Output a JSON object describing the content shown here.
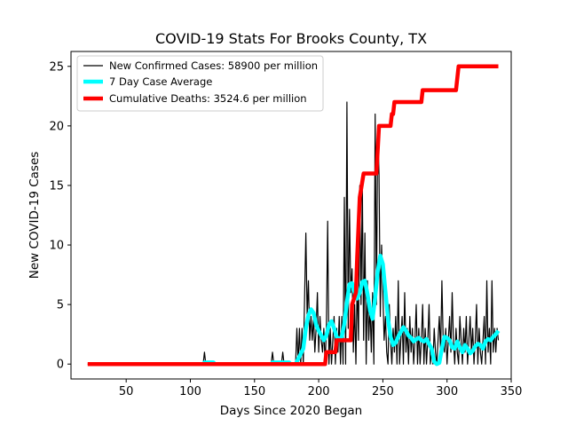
{
  "chart_data": {
    "type": "line",
    "title": "COVID-19 Stats For Brooks County, TX",
    "xlabel": "Days Since 2020 Began",
    "ylabel": "New COVID-19 Cases",
    "xlim": [
      7,
      350
    ],
    "ylim": [
      -1.25,
      26.25
    ],
    "x_ticks": [
      50,
      100,
      150,
      200,
      250,
      300,
      350
    ],
    "y_ticks": [
      0,
      5,
      10,
      15,
      20,
      25
    ],
    "legend_position": "top-left",
    "grid": false,
    "series": [
      {
        "name": "New Confirmed Cases: 58900 per million",
        "color": "#000000",
        "points": [
          [
            20,
            0
          ],
          [
            110,
            0
          ],
          [
            111,
            1
          ],
          [
            112,
            0
          ],
          [
            163,
            0
          ],
          [
            164,
            1
          ],
          [
            165,
            0
          ],
          [
            171,
            0
          ],
          [
            172,
            1
          ],
          [
            173,
            0
          ],
          [
            182,
            0
          ],
          [
            183,
            3
          ],
          [
            184,
            0
          ],
          [
            185,
            3
          ],
          [
            186,
            0
          ],
          [
            187,
            3
          ],
          [
            188,
            0
          ],
          [
            190,
            11
          ],
          [
            191,
            4
          ],
          [
            192,
            7
          ],
          [
            193,
            2
          ],
          [
            194,
            4
          ],
          [
            195,
            2
          ],
          [
            196,
            4
          ],
          [
            197,
            1
          ],
          [
            198,
            3
          ],
          [
            199,
            6
          ],
          [
            200,
            1
          ],
          [
            201,
            4
          ],
          [
            202,
            2
          ],
          [
            203,
            1
          ],
          [
            204,
            3
          ],
          [
            205,
            0
          ],
          [
            206,
            3
          ],
          [
            207,
            12
          ],
          [
            208,
            0
          ],
          [
            209,
            3
          ],
          [
            210,
            0
          ],
          [
            211,
            2
          ],
          [
            212,
            4
          ],
          [
            213,
            0
          ],
          [
            214,
            3
          ],
          [
            215,
            1
          ],
          [
            216,
            4
          ],
          [
            217,
            0
          ],
          [
            218,
            4
          ],
          [
            219,
            0
          ],
          [
            220,
            14
          ],
          [
            221,
            0
          ],
          [
            222,
            22
          ],
          [
            223,
            3
          ],
          [
            224,
            13
          ],
          [
            225,
            6
          ],
          [
            226,
            8
          ],
          [
            227,
            1
          ],
          [
            228,
            5
          ],
          [
            229,
            0
          ],
          [
            230,
            7
          ],
          [
            231,
            2
          ],
          [
            232,
            15
          ],
          [
            233,
            5
          ],
          [
            234,
            15
          ],
          [
            235,
            2
          ],
          [
            236,
            11
          ],
          [
            237,
            0
          ],
          [
            238,
            7
          ],
          [
            239,
            2
          ],
          [
            240,
            5
          ],
          [
            241,
            1
          ],
          [
            242,
            6
          ],
          [
            243,
            0
          ],
          [
            244,
            21
          ],
          [
            245,
            5
          ],
          [
            246,
            20
          ],
          [
            247,
            16
          ],
          [
            248,
            4
          ],
          [
            249,
            10
          ],
          [
            250,
            6
          ],
          [
            251,
            2
          ],
          [
            252,
            4
          ],
          [
            253,
            1
          ],
          [
            254,
            0
          ],
          [
            255,
            5
          ],
          [
            256,
            2
          ],
          [
            257,
            0
          ],
          [
            258,
            3
          ],
          [
            259,
            1
          ],
          [
            260,
            4
          ],
          [
            261,
            0
          ],
          [
            262,
            7
          ],
          [
            263,
            0
          ],
          [
            264,
            2
          ],
          [
            265,
            4
          ],
          [
            266,
            0
          ],
          [
            267,
            6
          ],
          [
            268,
            1
          ],
          [
            269,
            3
          ],
          [
            270,
            0
          ],
          [
            271,
            4
          ],
          [
            272,
            1
          ],
          [
            273,
            3
          ],
          [
            274,
            0
          ],
          [
            275,
            2
          ],
          [
            276,
            5
          ],
          [
            277,
            0
          ],
          [
            278,
            3
          ],
          [
            279,
            0
          ],
          [
            280,
            2
          ],
          [
            281,
            5
          ],
          [
            282,
            0
          ],
          [
            283,
            3
          ],
          [
            284,
            0
          ],
          [
            285,
            2
          ],
          [
            286,
            5
          ],
          [
            287,
            0
          ],
          [
            288,
            1
          ],
          [
            289,
            0
          ],
          [
            290,
            3
          ],
          [
            291,
            1
          ],
          [
            292,
            0
          ],
          [
            293,
            2
          ],
          [
            294,
            4
          ],
          [
            295,
            1
          ],
          [
            296,
            7
          ],
          [
            297,
            2
          ],
          [
            298,
            1
          ],
          [
            299,
            3
          ],
          [
            300,
            0
          ],
          [
            301,
            2
          ],
          [
            302,
            4
          ],
          [
            303,
            1
          ],
          [
            304,
            6
          ],
          [
            305,
            2
          ],
          [
            306,
            0
          ],
          [
            307,
            3
          ],
          [
            308,
            1
          ],
          [
            309,
            0
          ],
          [
            310,
            4
          ],
          [
            311,
            2
          ],
          [
            312,
            0
          ],
          [
            313,
            3
          ],
          [
            314,
            1
          ],
          [
            315,
            4
          ],
          [
            316,
            0
          ],
          [
            317,
            2
          ],
          [
            318,
            4
          ],
          [
            319,
            1
          ],
          [
            320,
            3
          ],
          [
            321,
            0
          ],
          [
            322,
            2
          ],
          [
            323,
            5
          ],
          [
            324,
            0
          ],
          [
            325,
            3
          ],
          [
            326,
            1
          ],
          [
            327,
            0
          ],
          [
            328,
            2
          ],
          [
            329,
            4
          ],
          [
            330,
            0
          ],
          [
            331,
            7
          ],
          [
            332,
            1
          ],
          [
            333,
            3
          ],
          [
            334,
            0
          ],
          [
            335,
            7
          ],
          [
            336,
            1
          ],
          [
            337,
            3
          ],
          [
            338,
            1
          ],
          [
            339,
            3
          ],
          [
            340,
            2
          ]
        ]
      },
      {
        "name": "7 Day Case Average",
        "color": "#00ffff",
        "points": [
          [
            110,
            0
          ],
          [
            111,
            0.14
          ],
          [
            118,
            0.14
          ],
          [
            119,
            0
          ],
          [
            163,
            0
          ],
          [
            164,
            0.14
          ],
          [
            170,
            0.14
          ],
          [
            171,
            0.14
          ],
          [
            177,
            0.14
          ],
          [
            178,
            0
          ],
          [
            182,
            0
          ],
          [
            184,
            0.43
          ],
          [
            186,
            0.86
          ],
          [
            188,
            1.3
          ],
          [
            190,
            3.0
          ],
          [
            192,
            4.1
          ],
          [
            194,
            4.6
          ],
          [
            196,
            4.3
          ],
          [
            198,
            3.3
          ],
          [
            200,
            2.8
          ],
          [
            202,
            2.4
          ],
          [
            204,
            2.0
          ],
          [
            206,
            2.4
          ],
          [
            208,
            3.3
          ],
          [
            210,
            3.6
          ],
          [
            212,
            3.0
          ],
          [
            214,
            2.3
          ],
          [
            216,
            2.0
          ],
          [
            218,
            2.3
          ],
          [
            220,
            3.4
          ],
          [
            222,
            5.2
          ],
          [
            224,
            6.7
          ],
          [
            226,
            6.8
          ],
          [
            228,
            6.0
          ],
          [
            230,
            5.5
          ],
          [
            232,
            6.0
          ],
          [
            234,
            6.9
          ],
          [
            236,
            7.0
          ],
          [
            238,
            5.9
          ],
          [
            240,
            4.5
          ],
          [
            242,
            3.8
          ],
          [
            244,
            5.6
          ],
          [
            246,
            7.8
          ],
          [
            248,
            9.1
          ],
          [
            250,
            8.4
          ],
          [
            252,
            6.1
          ],
          [
            254,
            3.8
          ],
          [
            256,
            2.3
          ],
          [
            258,
            1.6
          ],
          [
            260,
            1.8
          ],
          [
            262,
            2.3
          ],
          [
            264,
            2.7
          ],
          [
            266,
            3.1
          ],
          [
            268,
            2.8
          ],
          [
            270,
            2.4
          ],
          [
            272,
            2.2
          ],
          [
            274,
            1.9
          ],
          [
            276,
            2.1
          ],
          [
            278,
            2.2
          ],
          [
            280,
            2.0
          ],
          [
            282,
            1.9
          ],
          [
            284,
            2.1
          ],
          [
            286,
            1.7
          ],
          [
            288,
            1.3
          ],
          [
            290,
            0.2
          ],
          [
            292,
            0
          ],
          [
            294,
            0.1
          ],
          [
            296,
            1.3
          ],
          [
            298,
            2.3
          ],
          [
            300,
            2.2
          ],
          [
            302,
            2.0
          ],
          [
            304,
            1.4
          ],
          [
            306,
            1.3
          ],
          [
            308,
            1.9
          ],
          [
            310,
            1.4
          ],
          [
            312,
            1.0
          ],
          [
            314,
            1.6
          ],
          [
            316,
            1.3
          ],
          [
            318,
            0.9
          ],
          [
            320,
            1.1
          ],
          [
            322,
            1.5
          ],
          [
            324,
            1.7
          ],
          [
            326,
            1.6
          ],
          [
            328,
            1.3
          ],
          [
            330,
            1.9
          ],
          [
            332,
            2.1
          ],
          [
            334,
            2.0
          ],
          [
            336,
            2.3
          ],
          [
            338,
            2.5
          ],
          [
            340,
            2.8
          ]
        ]
      },
      {
        "name": "Cumulative Deaths: 3524.6 per million",
        "color": "#ff0000",
        "points": [
          [
            20,
            0
          ],
          [
            205,
            0
          ],
          [
            206,
            1
          ],
          [
            213,
            1
          ],
          [
            214,
            2
          ],
          [
            225,
            2
          ],
          [
            226,
            5
          ],
          [
            229,
            6
          ],
          [
            230,
            9
          ],
          [
            232,
            14
          ],
          [
            235,
            16
          ],
          [
            245,
            16
          ],
          [
            247,
            20
          ],
          [
            256,
            20
          ],
          [
            257,
            21
          ],
          [
            258,
            21
          ],
          [
            259,
            22
          ],
          [
            280,
            22
          ],
          [
            281,
            23
          ],
          [
            307,
            23
          ],
          [
            309,
            25
          ],
          [
            340,
            25
          ]
        ]
      }
    ]
  }
}
